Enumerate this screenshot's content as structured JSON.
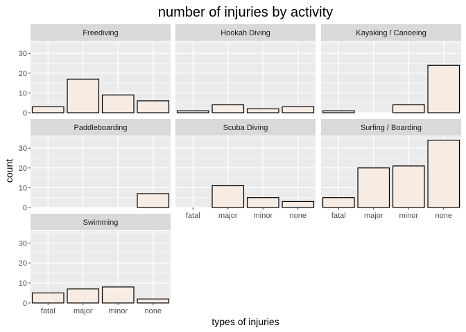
{
  "chart_data": {
    "type": "bar",
    "title": "number of injuries by activity",
    "xlabel": "types of injuries",
    "ylabel": "count",
    "categories": [
      "fatal",
      "major",
      "minor",
      "none"
    ],
    "ylim": [
      0,
      36
    ],
    "yticks": [
      0,
      10,
      20,
      30
    ],
    "grid": true,
    "facets": [
      {
        "name": "Freediving",
        "values": [
          3,
          17,
          9,
          6
        ]
      },
      {
        "name": "Hookah Diving",
        "values": [
          1,
          4,
          2,
          3
        ]
      },
      {
        "name": "Kayaking / Canoeing",
        "values": [
          1,
          0,
          4,
          24
        ]
      },
      {
        "name": "Paddleboarding",
        "values": [
          0,
          0,
          0,
          7
        ]
      },
      {
        "name": "Scuba Diving",
        "values": [
          0,
          11,
          5,
          3
        ]
      },
      {
        "name": "Surfing / Boarding",
        "values": [
          5,
          20,
          21,
          34
        ]
      },
      {
        "name": "Swimming",
        "values": [
          5,
          7,
          8,
          2
        ]
      }
    ],
    "colors": {
      "bar_fill": "#f7ece4",
      "bar_stroke": "#000000",
      "panel_background": "#ebebeb",
      "strip_background": "#d9d9d9",
      "gridline": "#ffffff"
    }
  }
}
